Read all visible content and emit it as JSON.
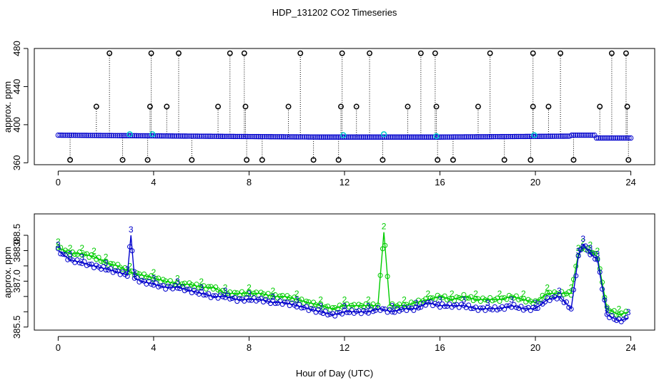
{
  "colors": {
    "series2": "#00cc00",
    "series3": "#0000cc",
    "outlier": "#000000",
    "flag": "#00cccc"
  },
  "chart_data": [
    {
      "type": "scatter",
      "title": "HDP_131202  CO2 Timeseries",
      "xlabel": "",
      "ylabel": "approx. ppm",
      "xlim": [
        -1,
        25
      ],
      "ylim": [
        358,
        480
      ],
      "xticks": [
        0,
        4,
        8,
        12,
        16,
        20,
        24
      ],
      "yticks": [
        360,
        400,
        440,
        480
      ],
      "ytick_labels": [
        "360",
        "400",
        "440",
        "480"
      ],
      "baseline_segments": [
        {
          "x": [
            0,
            5.5
          ],
          "y": [
            389,
            388
          ]
        },
        {
          "x": [
            5.5,
            11
          ],
          "y": [
            388,
            387
          ]
        },
        {
          "x": [
            11,
            16
          ],
          "y": [
            387,
            387
          ]
        },
        {
          "x": [
            16,
            21.5
          ],
          "y": [
            387,
            388
          ]
        },
        {
          "x": [
            21.5,
            22.5
          ],
          "y": [
            389,
            389
          ]
        },
        {
          "x": [
            22.5,
            24
          ],
          "y": [
            386,
            386
          ]
        }
      ],
      "outliers_high": [
        [
          2.15,
          475
        ],
        [
          3.9,
          475
        ],
        [
          5.05,
          475
        ],
        [
          7.2,
          475
        ],
        [
          7.8,
          475
        ],
        [
          10.15,
          475
        ],
        [
          11.9,
          475
        ],
        [
          13.05,
          475
        ],
        [
          15.2,
          475
        ],
        [
          15.8,
          475
        ],
        [
          18.1,
          475
        ],
        [
          19.9,
          475
        ],
        [
          21.05,
          475
        ],
        [
          23.2,
          475
        ],
        [
          23.8,
          475
        ]
      ],
      "outliers_mid": [
        [
          1.6,
          419
        ],
        [
          3.85,
          419
        ],
        [
          4.55,
          419
        ],
        [
          6.7,
          419
        ],
        [
          7.85,
          419
        ],
        [
          9.65,
          419
        ],
        [
          11.85,
          419
        ],
        [
          12.5,
          419
        ],
        [
          14.65,
          419
        ],
        [
          15.85,
          419
        ],
        [
          17.6,
          419
        ],
        [
          19.9,
          419
        ],
        [
          20.55,
          419
        ],
        [
          22.7,
          419
        ],
        [
          23.85,
          419
        ]
      ],
      "outliers_low": [
        [
          0.5,
          363
        ],
        [
          2.7,
          363
        ],
        [
          3.75,
          363
        ],
        [
          5.6,
          363
        ],
        [
          7.9,
          363
        ],
        [
          8.55,
          363
        ],
        [
          10.7,
          363
        ],
        [
          11.75,
          363
        ],
        [
          13.6,
          363
        ],
        [
          15.9,
          363
        ],
        [
          16.55,
          363
        ],
        [
          18.7,
          363
        ],
        [
          19.8,
          363
        ],
        [
          21.6,
          363
        ],
        [
          23.9,
          363
        ]
      ],
      "flags": [
        [
          3.0,
          390
        ],
        [
          3.95,
          390
        ],
        [
          11.95,
          389
        ],
        [
          13.65,
          390
        ],
        [
          15.85,
          388
        ],
        [
          19.95,
          389
        ]
      ]
    },
    {
      "type": "line",
      "title": "",
      "xlabel": "Hour of Day (UTC)",
      "ylabel": "approx. ppm",
      "xlim": [
        -1,
        25
      ],
      "ylim": [
        385.4,
        389.2
      ],
      "xticks": [
        0,
        4,
        8,
        12,
        16,
        20,
        24
      ],
      "yticks": [
        385.5,
        386.0,
        386.5,
        387.0,
        387.5,
        388.0,
        388.5
      ],
      "ytick_labels": [
        "385.5",
        "",
        "",
        "387.0",
        "",
        "388.0",
        "388.5"
      ],
      "series": [
        {
          "name": "2",
          "color": "#00cc00",
          "x": [
            0,
            0.5,
            1.0,
            1.5,
            2.0,
            2.5,
            3.0,
            3.5,
            4.0,
            4.5,
            5.0,
            5.5,
            6.0,
            6.5,
            7.0,
            7.5,
            8.0,
            8.5,
            9.0,
            9.5,
            10.0,
            10.5,
            11.0,
            11.5,
            12.0,
            12.5,
            13.0,
            13.4,
            13.65,
            13.9,
            14.5,
            15.0,
            15.5,
            16.0,
            16.5,
            17.0,
            17.5,
            18.0,
            18.5,
            19.0,
            19.5,
            20.0,
            20.5,
            21.0,
            21.5,
            21.8,
            22.0,
            22.3,
            22.6,
            23.0,
            23.5,
            23.9
          ],
          "y": [
            388.1,
            387.9,
            387.9,
            387.8,
            387.6,
            387.5,
            387.3,
            387.2,
            387.1,
            387.0,
            386.9,
            386.9,
            386.8,
            386.8,
            386.6,
            386.6,
            386.6,
            386.6,
            386.5,
            386.5,
            386.4,
            386.3,
            386.2,
            386.1,
            386.2,
            386.2,
            386.2,
            386.2,
            388.6,
            386.2,
            386.2,
            386.3,
            386.4,
            386.5,
            386.4,
            386.5,
            386.4,
            386.4,
            386.4,
            386.5,
            386.4,
            386.3,
            386.6,
            386.6,
            386.6,
            387.9,
            388.1,
            388.0,
            387.8,
            386.1,
            385.9,
            386.0
          ]
        },
        {
          "name": "3",
          "color": "#0000cc",
          "x": [
            0,
            0.5,
            1.0,
            1.5,
            2.0,
            2.5,
            2.9,
            3.05,
            3.2,
            3.5,
            4.0,
            4.5,
            5.0,
            5.5,
            6.0,
            6.5,
            7.0,
            7.5,
            8.0,
            8.5,
            9.0,
            9.5,
            10.0,
            10.5,
            11.0,
            11.5,
            12.0,
            12.5,
            13.0,
            13.5,
            14.0,
            14.5,
            15.0,
            15.5,
            16.0,
            16.5,
            17.0,
            17.5,
            18.0,
            18.5,
            19.0,
            19.5,
            20.0,
            20.5,
            21.0,
            21.5,
            21.8,
            22.0,
            22.3,
            22.6,
            23.0,
            23.5,
            23.9
          ],
          "y": [
            388.0,
            387.7,
            387.6,
            387.5,
            387.4,
            387.3,
            387.2,
            388.5,
            387.1,
            387.0,
            386.9,
            386.8,
            386.8,
            386.7,
            386.6,
            386.5,
            386.5,
            386.4,
            386.4,
            386.4,
            386.3,
            386.3,
            386.2,
            386.1,
            386.0,
            385.9,
            386.0,
            386.0,
            386.0,
            386.1,
            386.0,
            386.1,
            386.1,
            386.3,
            386.2,
            386.2,
            386.2,
            386.1,
            386.1,
            386.1,
            386.2,
            386.1,
            386.1,
            386.4,
            386.5,
            386.1,
            387.8,
            388.2,
            387.9,
            387.7,
            385.9,
            385.7,
            385.8
          ]
        }
      ]
    }
  ]
}
